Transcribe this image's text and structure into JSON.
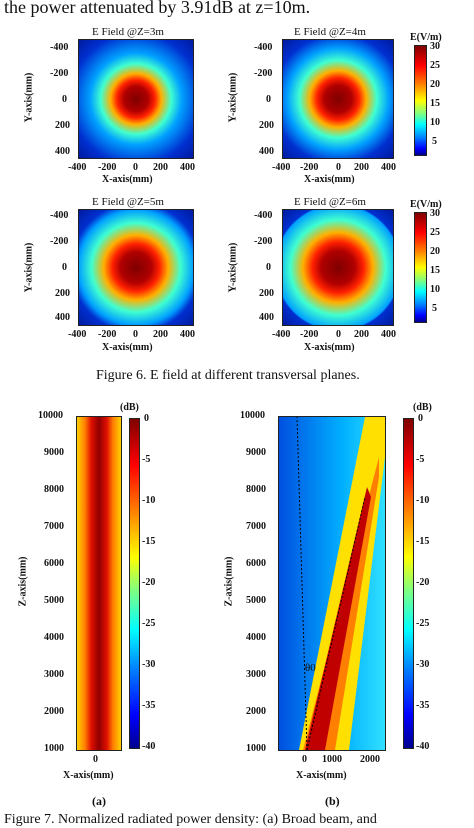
{
  "header_text": "the power attenuated by 3.91dB at z=10m.",
  "fig6": {
    "caption": "Figure 6. E field at different transversal planes.",
    "colorbar": {
      "unit": "E(V/m)",
      "ticks": [
        "30",
        "25",
        "20",
        "15",
        "10",
        "5"
      ],
      "min": 0,
      "max": 30
    },
    "panels": [
      {
        "title": "E Field @Z=3m",
        "spot_scale": 0.82
      },
      {
        "title": "E Field @Z=4m",
        "spot_scale": 0.92
      },
      {
        "title": "E Field @Z=5m",
        "spot_scale": 1.05
      },
      {
        "title": "E Field @Z=6m",
        "spot_scale": 1.15
      }
    ],
    "y_ticks": [
      "-400",
      "-200",
      "0",
      "200",
      "400"
    ],
    "x_ticks": [
      "-400",
      "-200",
      "0",
      "200",
      "400"
    ],
    "xlabel": "X-axis(mm)",
    "ylabel": "Y-axis(mm)"
  },
  "fig7": {
    "colorbar": {
      "unit": "(dB)",
      "ticks": [
        "0",
        "-5",
        "-10",
        "-15",
        "-20",
        "-25",
        "-30",
        "-35",
        "-40"
      ],
      "min": -40,
      "max": 0
    },
    "z_ticks": [
      "10000",
      "9000",
      "8000",
      "7000",
      "6000",
      "5000",
      "4000",
      "3000",
      "2000",
      "1000"
    ],
    "zlabel": "Z-axis(mm)",
    "xlabel": "X-axis(mm)",
    "panel_a": {
      "label": "(a)",
      "x_ticks": [
        "0"
      ]
    },
    "panel_b": {
      "label": "(b)",
      "x_ticks": [
        "0",
        "1000",
        "2000"
      ],
      "angle_label": "θ0"
    },
    "caption": "Figure 7. Normalized radiated power density: (a) Broad beam, and"
  }
}
